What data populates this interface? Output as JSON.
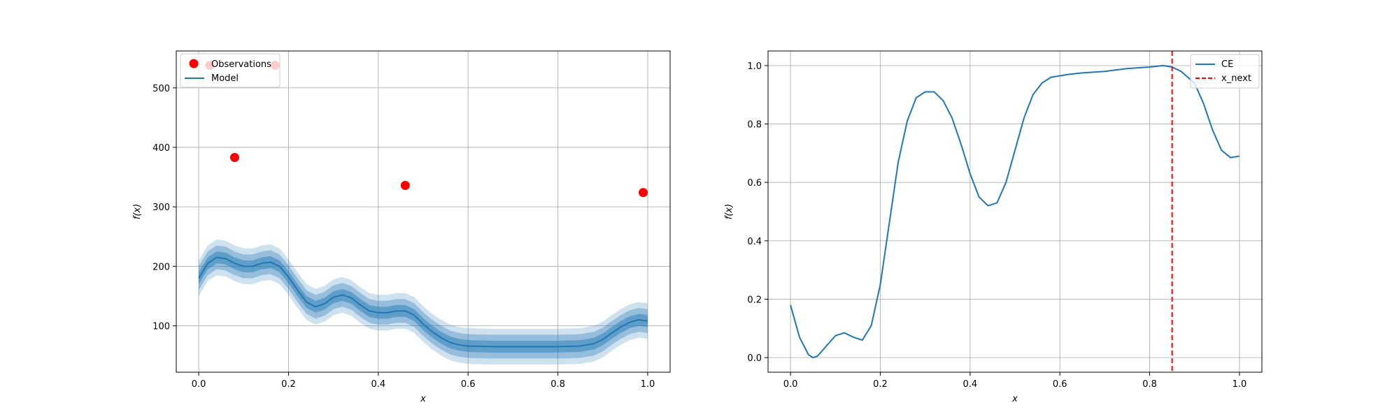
{
  "colors": {
    "model": "#1f77b4",
    "observations": "#ff0000",
    "x_next": "#d62728",
    "grid": "#b0b0b0"
  },
  "chart_data": [
    {
      "type": "line",
      "xlabel": "x",
      "ylabel": "f(x)",
      "xlim": [
        -0.05,
        1.05
      ],
      "ylim": [
        22,
        562
      ],
      "xticks": [
        0.0,
        0.2,
        0.4,
        0.6,
        0.8,
        1.0
      ],
      "yticks": [
        100,
        200,
        300,
        400,
        500
      ],
      "grid": true,
      "legend_position": "top-left",
      "legend": [
        "Observations",
        "Model"
      ],
      "observations": {
        "name": "Observations",
        "x": [
          0.025,
          0.08,
          0.17,
          0.46,
          0.99
        ],
        "y": [
          538,
          383,
          538,
          336,
          324
        ]
      },
      "model": {
        "name": "Model",
        "x": [
          0.0,
          0.02,
          0.04,
          0.06,
          0.08,
          0.1,
          0.12,
          0.14,
          0.16,
          0.18,
          0.2,
          0.22,
          0.24,
          0.26,
          0.28,
          0.3,
          0.32,
          0.34,
          0.36,
          0.38,
          0.4,
          0.42,
          0.44,
          0.46,
          0.48,
          0.5,
          0.52,
          0.54,
          0.56,
          0.58,
          0.6,
          0.65,
          0.7,
          0.75,
          0.8,
          0.85,
          0.88,
          0.9,
          0.92,
          0.94,
          0.96,
          0.98,
          1.0
        ],
        "y": [
          180,
          205,
          215,
          213,
          205,
          200,
          200,
          205,
          207,
          200,
          182,
          160,
          140,
          132,
          137,
          148,
          152,
          147,
          135,
          125,
          122,
          122,
          125,
          125,
          118,
          103,
          90,
          80,
          72,
          68,
          66,
          65,
          65,
          65,
          65,
          66,
          70,
          77,
          88,
          98,
          106,
          110,
          108
        ]
      },
      "confidence_bands": [
        10,
        20,
        30
      ]
    },
    {
      "type": "line",
      "xlabel": "x",
      "ylabel": "f(x)",
      "xlim": [
        -0.05,
        1.05
      ],
      "ylim": [
        -0.05,
        1.05
      ],
      "xticks": [
        0.0,
        0.2,
        0.4,
        0.6,
        0.8,
        1.0
      ],
      "yticks": [
        0.0,
        0.2,
        0.4,
        0.6,
        0.8,
        1.0
      ],
      "grid": true,
      "legend_position": "top-right",
      "legend": [
        "CE",
        "x_next"
      ],
      "series": [
        {
          "name": "CE",
          "x": [
            0.0,
            0.02,
            0.04,
            0.05,
            0.06,
            0.08,
            0.1,
            0.12,
            0.14,
            0.16,
            0.18,
            0.2,
            0.22,
            0.24,
            0.26,
            0.28,
            0.3,
            0.32,
            0.34,
            0.36,
            0.38,
            0.4,
            0.42,
            0.44,
            0.46,
            0.48,
            0.5,
            0.52,
            0.54,
            0.56,
            0.58,
            0.6,
            0.62,
            0.65,
            0.7,
            0.75,
            0.8,
            0.83,
            0.85,
            0.87,
            0.9,
            0.92,
            0.94,
            0.96,
            0.98,
            1.0
          ],
          "y": [
            0.18,
            0.07,
            0.01,
            0.0,
            0.005,
            0.04,
            0.075,
            0.085,
            0.07,
            0.06,
            0.11,
            0.25,
            0.46,
            0.67,
            0.81,
            0.89,
            0.91,
            0.91,
            0.88,
            0.82,
            0.73,
            0.63,
            0.55,
            0.52,
            0.53,
            0.6,
            0.71,
            0.82,
            0.9,
            0.94,
            0.96,
            0.965,
            0.97,
            0.975,
            0.98,
            0.99,
            0.995,
            1.0,
            0.995,
            0.98,
            0.94,
            0.87,
            0.78,
            0.71,
            0.685,
            0.69
          ]
        }
      ],
      "vline": {
        "name": "x_next",
        "x": 0.85
      }
    }
  ]
}
